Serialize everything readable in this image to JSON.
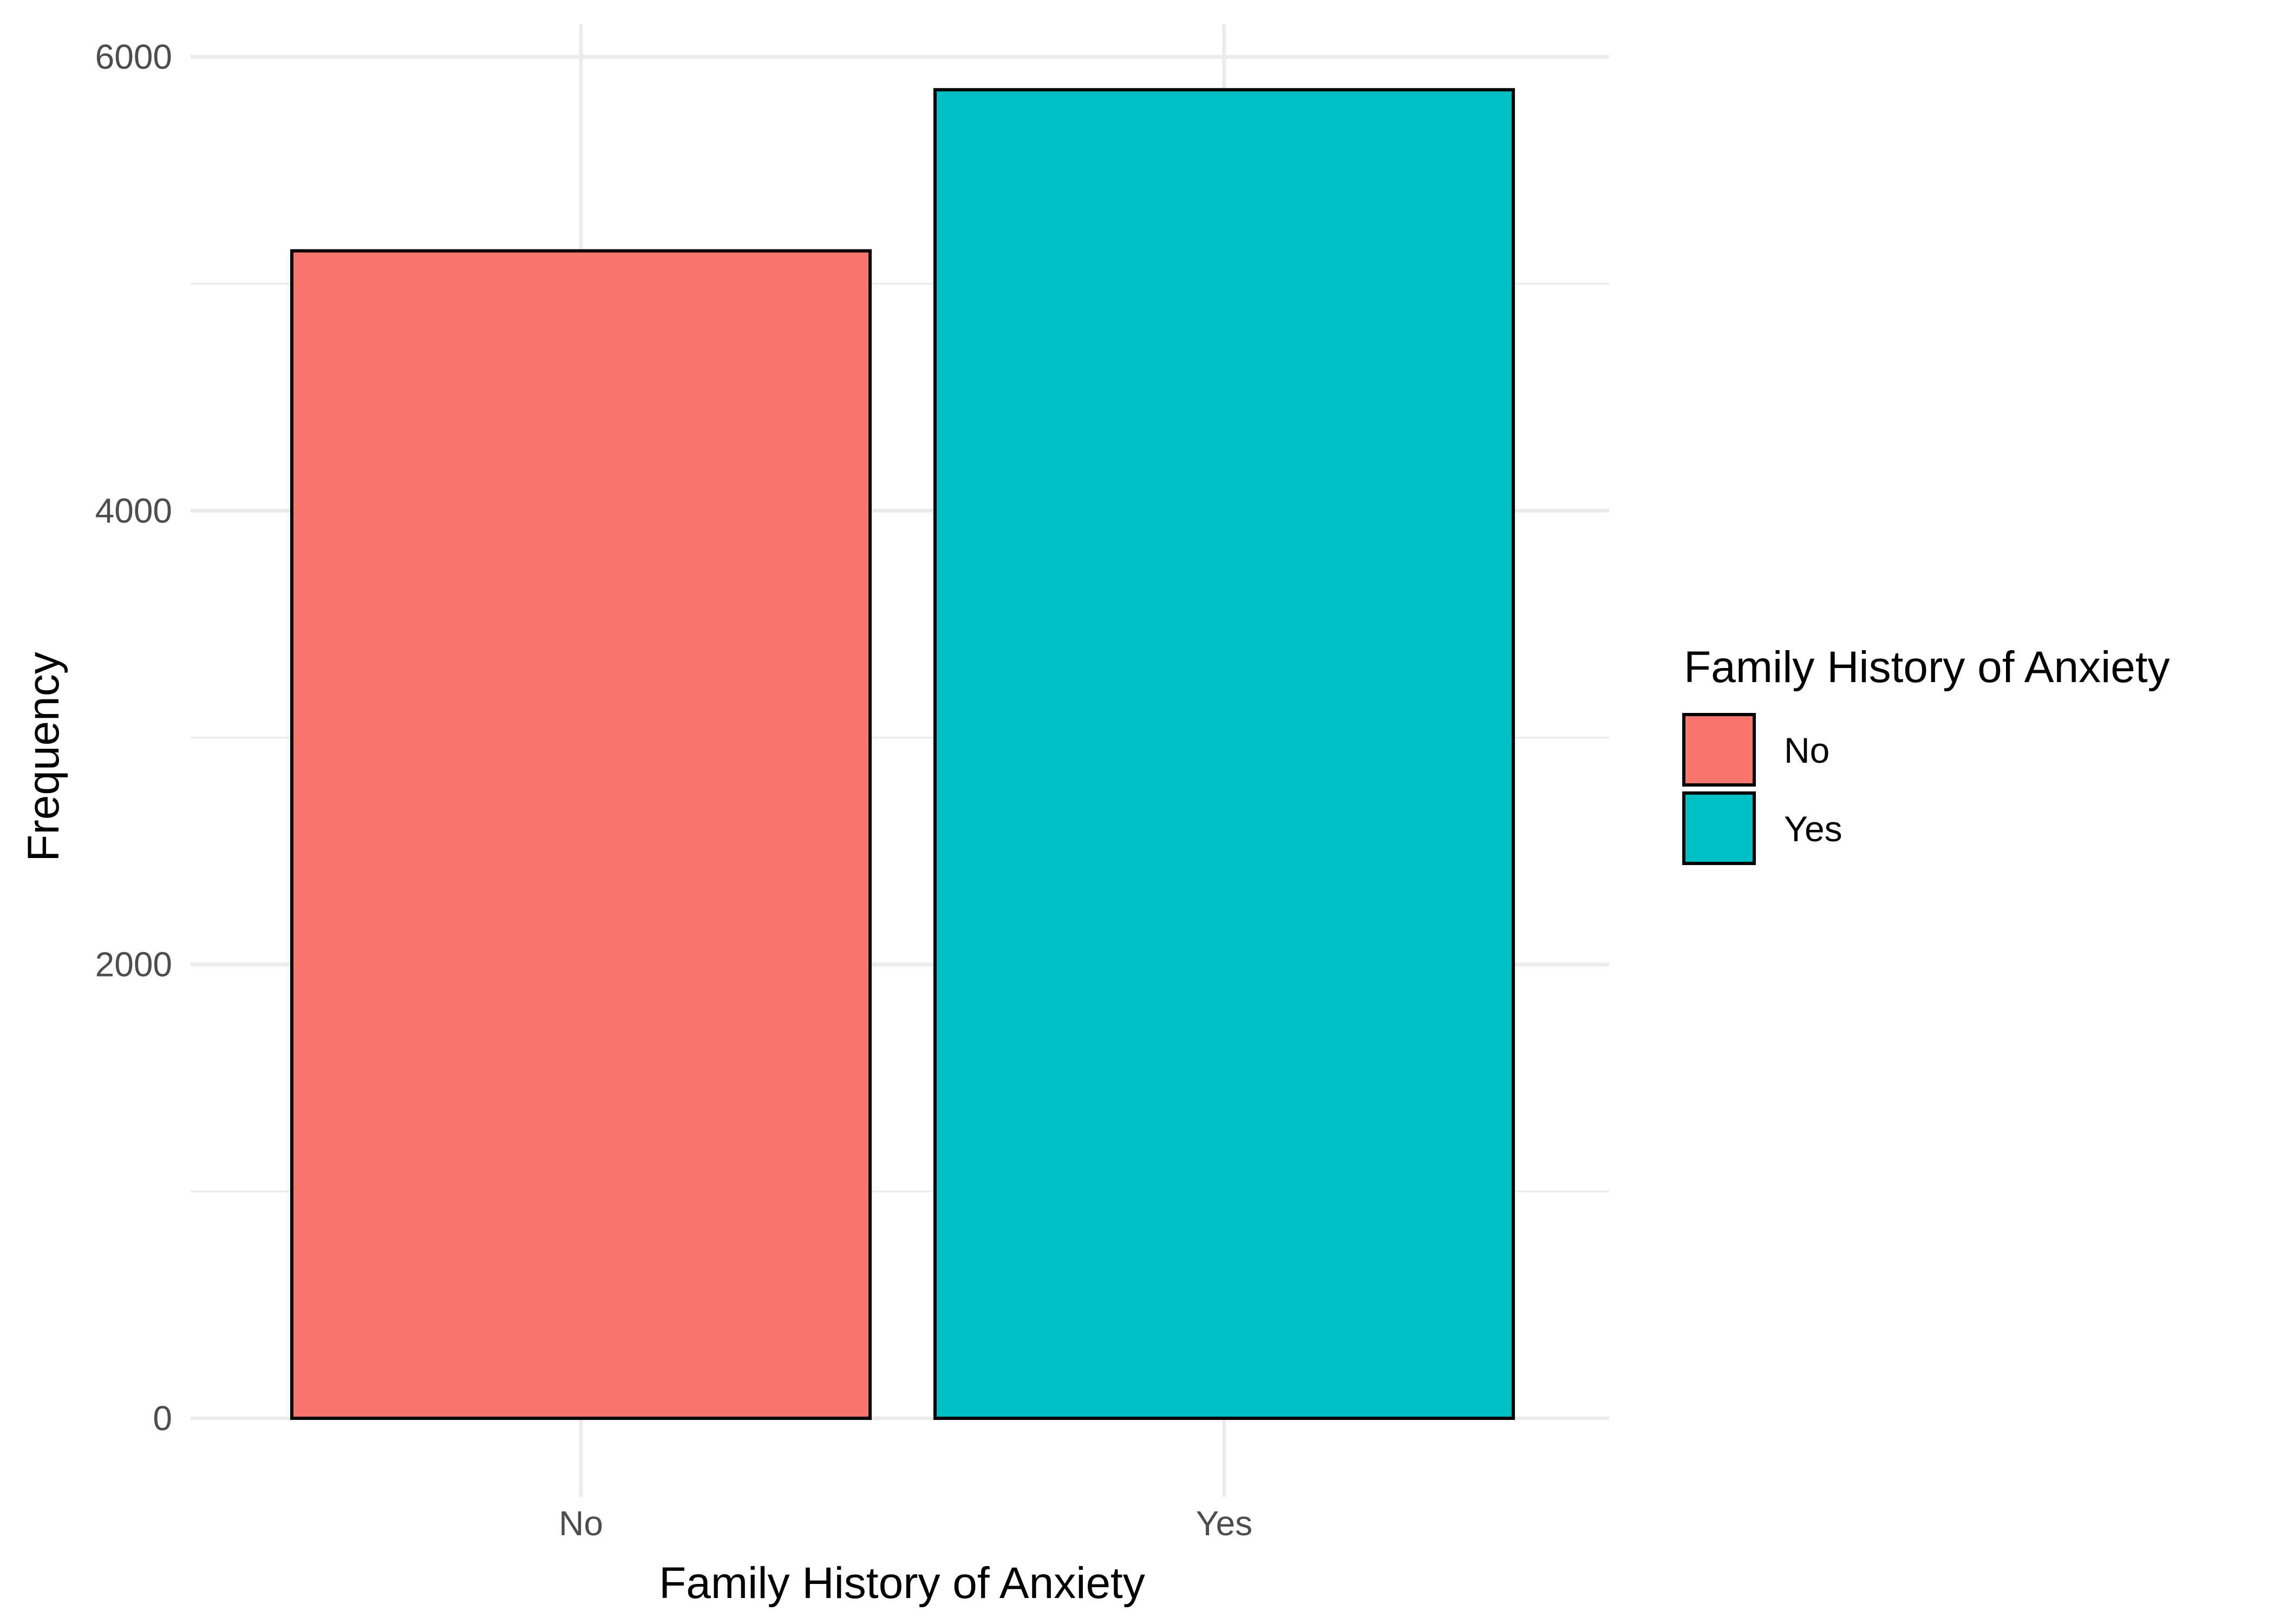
{
  "chart_data": {
    "type": "bar",
    "title": "",
    "xlabel": "Family History of Anxiety",
    "ylabel": "Frequency",
    "categories": [
      "No",
      "Yes"
    ],
    "values": [
      5145,
      5855
    ],
    "colors": [
      "#F8766D",
      "#00BFC4"
    ],
    "ylim": [
      0,
      6000
    ],
    "yticks": [
      0,
      2000,
      4000,
      6000
    ],
    "ytick_labels": [
      "0",
      "2000",
      "4000",
      "6000"
    ],
    "grid": true,
    "legend": {
      "title": "Family History of Anxiety",
      "position": "right",
      "entries": [
        {
          "label": "No",
          "color": "#F8766D"
        },
        {
          "label": "Yes",
          "color": "#00BFC4"
        }
      ]
    }
  }
}
